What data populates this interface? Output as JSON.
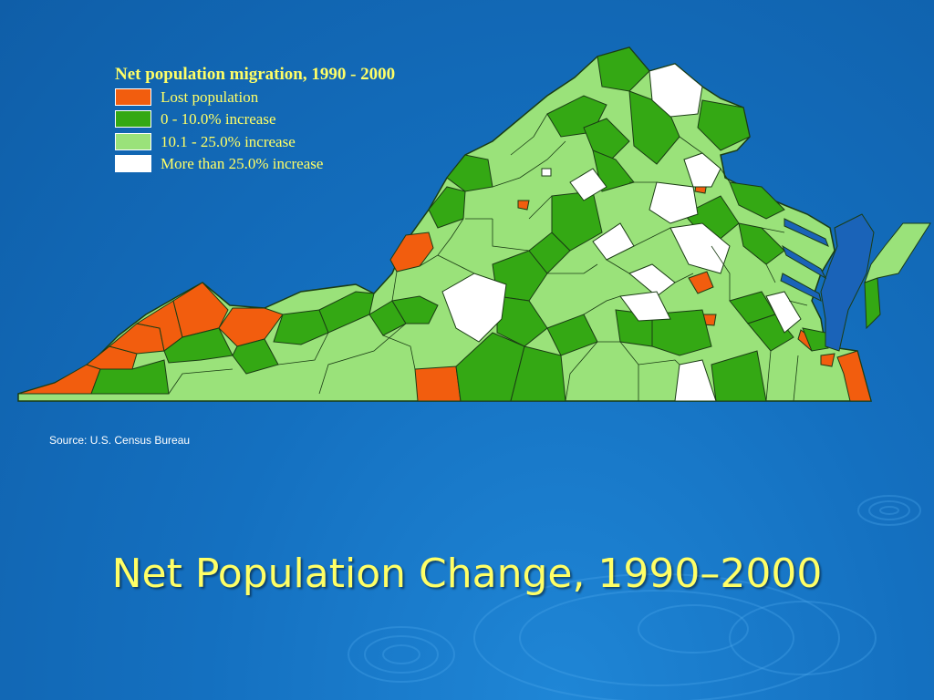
{
  "slide": {
    "title": "Net Population Change, 1990–2000"
  },
  "legend": {
    "title": "Net population migration, 1990 - 2000",
    "items": [
      {
        "label": "Lost population",
        "color": "#f25d0e"
      },
      {
        "label": "0 - 10.0% increase",
        "color": "#34a814"
      },
      {
        "label": "10.1 - 25.0% increase",
        "color": "#9ae27a"
      },
      {
        "label": "More than 25.0% increase",
        "color": "#ffffff"
      }
    ]
  },
  "source": "Source: U.S. Census Bureau",
  "colors": {
    "background": "#1470c0",
    "title_text": "#ffff66",
    "water": "#1a63b8",
    "county_border": "#1a3c14"
  }
}
